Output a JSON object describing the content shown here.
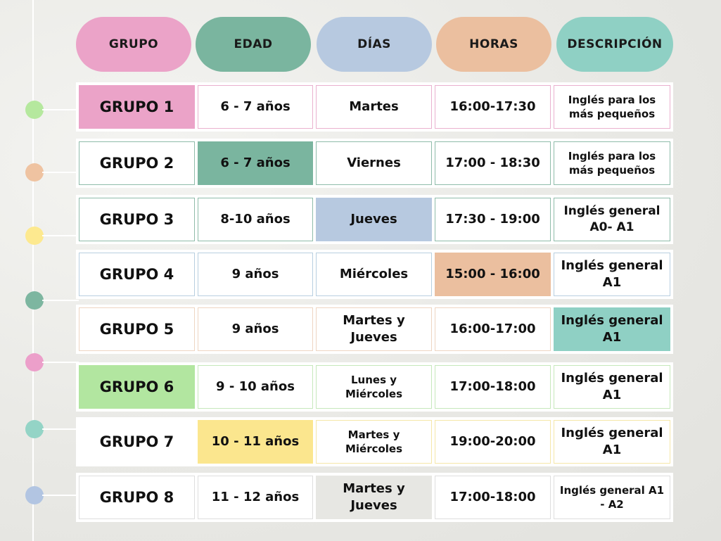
{
  "colors": {
    "pink": "#eba3c8",
    "green": "#7ab59f",
    "blue": "#b7c9e0",
    "peach": "#ebbf9f",
    "teal": "#8fd0c4",
    "lightgreen": "#b2e6a0",
    "yellow": "#fbe68e",
    "gray": "#e7e7e3",
    "dotgreen": "#b5e89e",
    "dotpeach": "#efc3a1",
    "dotyellow": "#fde98f",
    "dotdarkgreen": "#7db6a0",
    "dotpink": "#ec9fca",
    "dotteal": "#94d4c6",
    "dotblue": "#b2c5e2"
  },
  "headers": {
    "grupo": "GRUPO",
    "edad": "EDAD",
    "dias": "DÍAS",
    "horas": "HORAS",
    "descripcion": "DESCRIPCIÓN"
  },
  "groups": [
    {
      "grupo": "GRUPO 1",
      "edad": "6 - 7 años",
      "dias": "Martes",
      "horas": "16:00-17:30",
      "descripcion": "Inglés para los más pequeños"
    },
    {
      "grupo": "GRUPO 2",
      "edad": "6 - 7 años",
      "dias": "Viernes",
      "horas": "17:00 - 18:30",
      "descripcion": "Inglés para los más pequeños"
    },
    {
      "grupo": "GRUPO 3",
      "edad": "8-10 años",
      "dias": "Jueves",
      "horas": "17:30 - 19:00",
      "descripcion": "Inglés general A0- A1"
    },
    {
      "grupo": "GRUPO 4",
      "edad": "9 años",
      "dias": "Miércoles",
      "horas": "15:00 - 16:00",
      "descripcion": "Inglés general A1"
    },
    {
      "grupo": "GRUPO 5",
      "edad": "9 años",
      "dias": "Martes y Jueves",
      "horas": "16:00-17:00",
      "descripcion": "Inglés general A1"
    },
    {
      "grupo": "GRUPO 6",
      "edad": "9 - 10 años",
      "dias": "Lunes y Miércoles",
      "horas": "17:00-18:00",
      "descripcion": "Inglés general A1"
    },
    {
      "grupo": "GRUPO 7",
      "edad": "10 - 11 años",
      "dias": "Martes y Miércoles",
      "horas": "19:00-20:00",
      "descripcion": "Inglés general A1"
    },
    {
      "grupo": "GRUPO 8",
      "edad": "11 - 12 años",
      "dias": "Martes y Jueves",
      "horas": "17:00-18:00",
      "descripcion": "Inglés general A1 - A2"
    }
  ]
}
